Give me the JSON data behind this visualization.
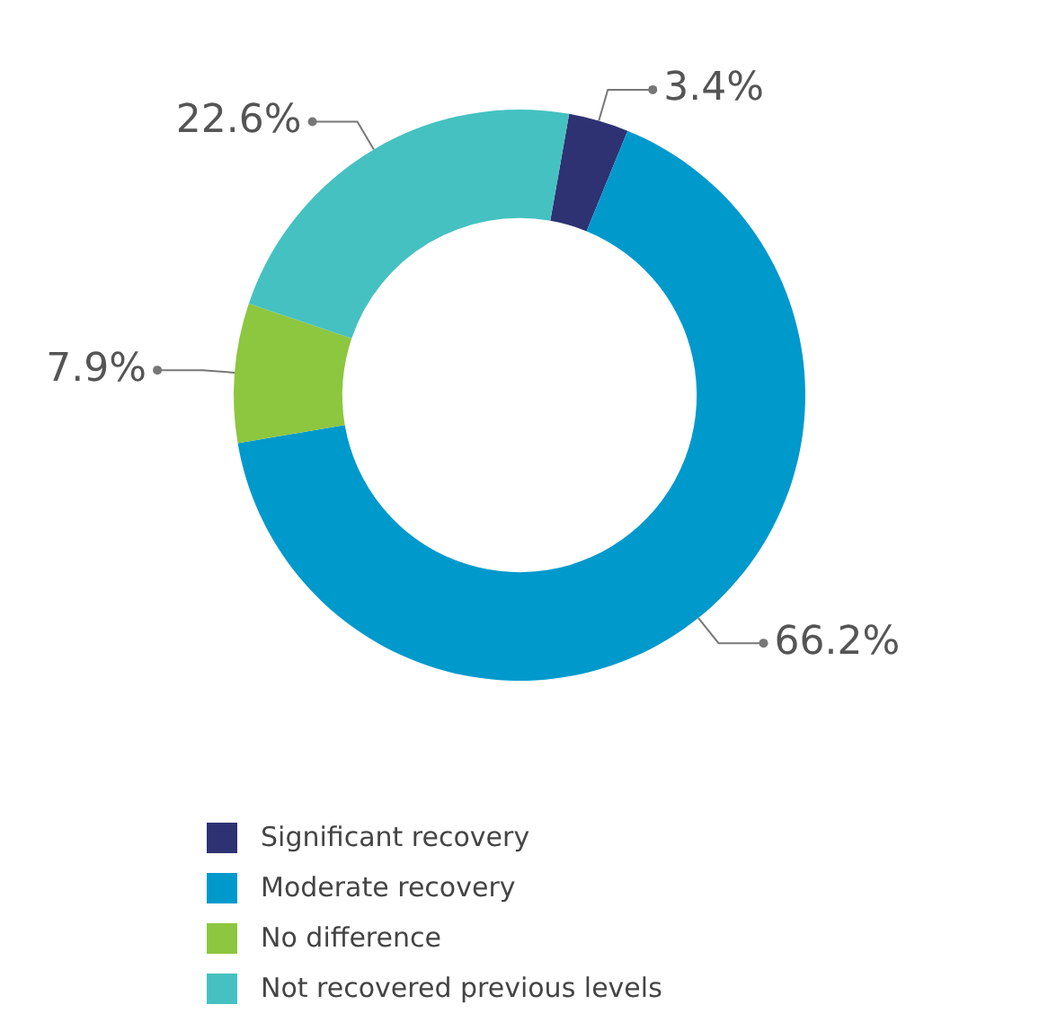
{
  "chart_data": {
    "type": "donut",
    "categories": [
      "Significant recovery",
      "Moderate recovery",
      "No difference",
      "Not recovered previous levels"
    ],
    "values": [
      3.4,
      66.2,
      7.9,
      22.6
    ],
    "colors": [
      "#2e3272",
      "#0099cc",
      "#8dc63f",
      "#45c1c1"
    ],
    "value_labels": [
      "3.4%",
      "66.2%",
      "7.9%",
      "22.6%"
    ],
    "legend": "bottom"
  }
}
